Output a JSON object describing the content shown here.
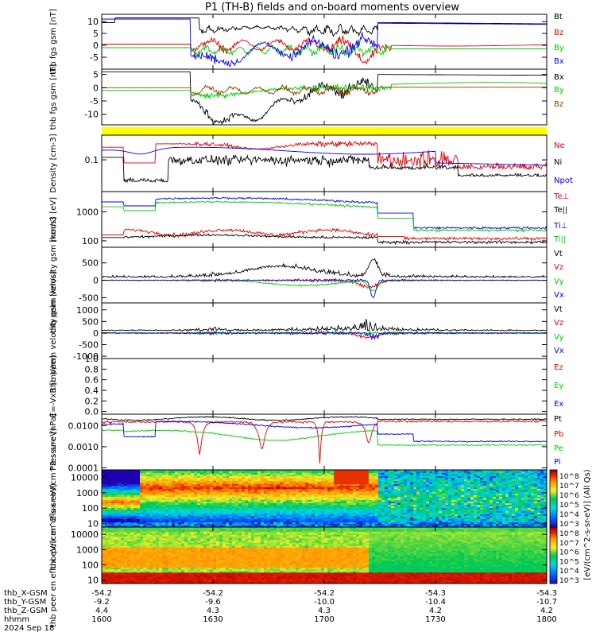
{
  "title": "P1 (TH-B) fields and on-board moments overview",
  "colors": {
    "black": "#000000",
    "red": "#e00000",
    "green": "#00cc00",
    "blue": "#0000ee",
    "yellow": "#ffff00"
  },
  "chart_data": [
    {
      "type": "line",
      "id": "fgs",
      "ylabel": "thb fgs gsm [nT]",
      "ylim": [
        -10,
        13
      ],
      "yticks": [
        "10",
        "5",
        "0",
        "-5"
      ],
      "ytick_values": [
        10,
        5,
        0,
        -5
      ],
      "series": [
        {
          "name": "Bt",
          "color": "#000000",
          "kind": "bt"
        },
        {
          "name": "Bz",
          "color": "#e00000",
          "kind": "bz"
        },
        {
          "name": "By",
          "color": "#00cc00",
          "kind": "by"
        },
        {
          "name": "Bx",
          "color": "#0000ee",
          "kind": "bx"
        }
      ]
    },
    {
      "type": "line",
      "id": "fgs2",
      "ylabel": "thb fgs gsm [nT]",
      "ylim": [
        -14,
        7
      ],
      "yticks": [
        "5",
        "0",
        "-5",
        "-10"
      ],
      "ytick_values": [
        5,
        0,
        -5,
        -10
      ],
      "series": [
        {
          "name": "Bx",
          "color": "#000000",
          "kind": "bx2"
        },
        {
          "name": "By",
          "color": "#00cc00",
          "kind": "by2"
        },
        {
          "name": "Bz",
          "color": "#8b4000",
          "kind": "bz2"
        }
      ]
    },
    {
      "type": "bar",
      "id": "mode",
      "label": "",
      "color": "#ffff00"
    },
    {
      "type": "line",
      "id": "density",
      "scale": "log",
      "ylabel": "Density [cm-3]",
      "yticks": [
        "0.1"
      ],
      "ytick_values": [
        0.1
      ],
      "ylim": [
        0.01,
        0.6
      ],
      "series": [
        {
          "name": "Ne",
          "color": "#e00000",
          "kind": "ne"
        },
        {
          "name": "Ni",
          "color": "#000000",
          "kind": "ni"
        },
        {
          "name": "Npot",
          "color": "#0000ee",
          "kind": "npot"
        }
      ]
    },
    {
      "type": "line",
      "id": "temp",
      "scale": "log",
      "ylabel": "mom3 [eV]",
      "yticks": [
        "1000",
        "100"
      ],
      "ytick_values": [
        1000,
        100
      ],
      "ylim": [
        60,
        5000
      ],
      "series": [
        {
          "name": "Te⊥",
          "color": "#e00000",
          "kind": "teperp"
        },
        {
          "name": "Te||",
          "color": "#000000",
          "kind": "tepar"
        },
        {
          "name": "Ti⊥",
          "color": "#0000ee",
          "kind": "tiperp"
        },
        {
          "name": "Ti||",
          "color": "#00cc00",
          "kind": "tipar"
        }
      ]
    },
    {
      "type": "line",
      "id": "ivel",
      "ylabel": "thb peim velocity gsm [km/s]",
      "ylim": [
        -650,
        950
      ],
      "yticks": [
        "500",
        "0",
        "-500"
      ],
      "ytick_values": [
        500,
        0,
        -500
      ],
      "series": [
        {
          "name": "Vt",
          "color": "#000000",
          "kind": "ivt"
        },
        {
          "name": "Vz",
          "color": "#e00000",
          "kind": "ivz"
        },
        {
          "name": "Vy",
          "color": "#00cc00",
          "kind": "ivy"
        },
        {
          "name": "Vx",
          "color": "#0000ee",
          "kind": "ivx"
        }
      ]
    },
    {
      "type": "line",
      "id": "evel",
      "ylabel": "thb peem velocity gsm [km/s]",
      "ylim": [
        -1100,
        1300
      ],
      "yticks": [
        "1000",
        "500",
        "0",
        "-500",
        "-1000"
      ],
      "ytick_values": [
        1000,
        500,
        0,
        -500,
        -1000
      ],
      "series": [
        {
          "name": "Vt",
          "color": "#000000",
          "kind": "evt"
        },
        {
          "name": "Vz",
          "color": "#e00000",
          "kind": "evz"
        },
        {
          "name": "Vy",
          "color": "#00cc00",
          "kind": "evy"
        },
        {
          "name": "Vx",
          "color": "#0000ee",
          "kind": "evx"
        }
      ]
    },
    {
      "type": "line",
      "id": "efield",
      "ylabel": "E=-VxB [mV/m]",
      "ylim": [
        -0.05,
        1.0
      ],
      "yticks": [
        "1.0",
        "0.8",
        "0.6",
        "0.4",
        "0.2",
        "0.0"
      ],
      "ytick_values": [
        1.0,
        0.8,
        0.6,
        0.4,
        0.2,
        0.0
      ],
      "series": [
        {
          "name": "Ez",
          "color": "#e00000",
          "kind": "none"
        },
        {
          "name": "Ey",
          "color": "#00cc00",
          "kind": "none"
        },
        {
          "name": "Ex",
          "color": "#0000ee",
          "kind": "none"
        }
      ]
    },
    {
      "type": "line",
      "id": "pressure",
      "scale": "log",
      "ylabel": "Pressure [nPa]",
      "yticks": [
        "0.0100",
        "0.0010",
        "0.0001"
      ],
      "ytick_values": [
        0.01,
        0.001,
        0.0001
      ],
      "ylim": [
        8e-05,
        0.035
      ],
      "series": [
        {
          "name": "Pt",
          "color": "#000000",
          "kind": "pt"
        },
        {
          "name": "Pb",
          "color": "#e00000",
          "kind": "pb"
        },
        {
          "name": "Pe",
          "color": "#00cc00",
          "kind": "pe"
        },
        {
          "name": "Pi",
          "color": "#0000ee",
          "kind": "pi"
        }
      ]
    },
    {
      "type": "heatmap",
      "id": "ispec",
      "scale": "log",
      "ylabel": "thb peir en eflux eV/(cm^2-s-sr-eV)",
      "yticks": [
        "10000",
        "1000",
        "100",
        "10"
      ],
      "ytick_values": [
        10000,
        1000,
        100,
        10
      ],
      "ylim": [
        6,
        30000
      ],
      "kind": "ion"
    },
    {
      "type": "heatmap",
      "id": "espec",
      "scale": "log",
      "ylabel": "thb peer en eflux eV/(cm^2-s-sr-eV)",
      "yticks": [
        "10000",
        "1000",
        "100",
        "10"
      ],
      "ytick_values": [
        10000,
        1000,
        100,
        10
      ],
      "ylim": [
        6,
        30000
      ],
      "kind": "electron"
    }
  ],
  "colorbar": {
    "label": "[eV/(cm^2-s-sr-eV)] (All Qs)",
    "ticks": [
      "10^8",
      "10^7",
      "10^6",
      "10^5",
      "10^4",
      "10^3"
    ],
    "ticks2": [
      "10^8",
      "10^7",
      "10^6",
      "10^5",
      "10^4",
      "10^3"
    ]
  },
  "xaxis": {
    "tick_hhmm": [
      1600,
      1630,
      1700,
      1730,
      1800
    ],
    "rows": [
      {
        "label": "thb_X-GSM",
        "values": [
          "-54.2",
          "-54.2",
          "-54.2",
          "-54.3",
          "-54.3"
        ]
      },
      {
        "label": "thb_Y-GSM",
        "values": [
          "-9.2",
          "-9.6",
          "-10.0",
          "-10.4",
          "-10.7"
        ]
      },
      {
        "label": "thb_Z-GSM",
        "values": [
          "4.4",
          "4.3",
          "4.3",
          "4.2",
          "4.2"
        ]
      },
      {
        "label": "hhmm",
        "values": [
          "1600",
          "1630",
          "1700",
          "1730",
          "1800"
        ]
      }
    ],
    "date": "2024 Sep 18"
  }
}
